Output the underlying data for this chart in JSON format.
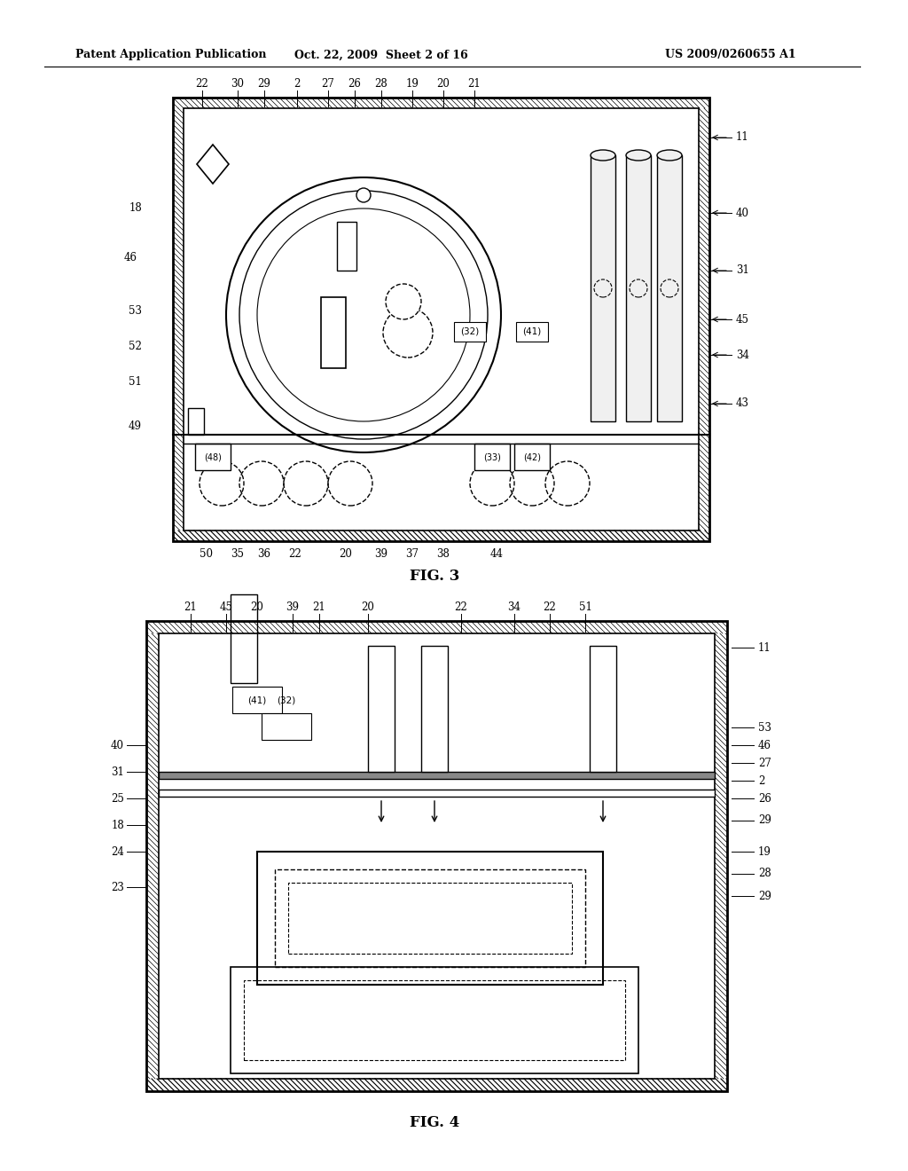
{
  "bg_color": "#ffffff",
  "header_left": "Patent Application Publication",
  "header_center": "Oct. 22, 2009  Sheet 2 of 16",
  "header_right": "US 2009/0260655 A1",
  "fig3_label": "FIG. 3",
  "fig4_label": "FIG. 4"
}
